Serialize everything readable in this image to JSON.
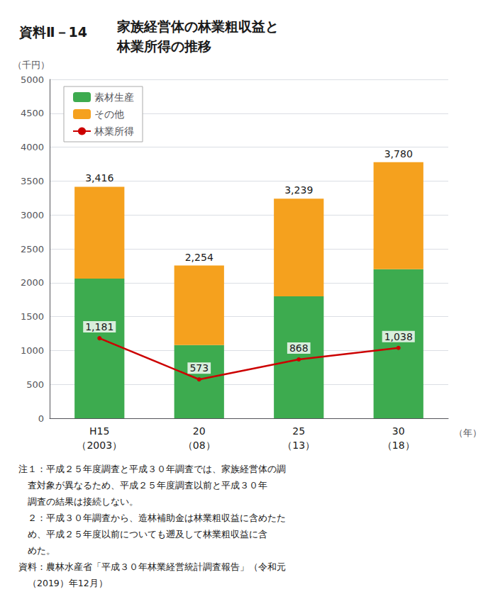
{
  "chart_data": {
    "type": "bar",
    "title_box": "資料Ⅱ－14",
    "title": "家族経営体の林業粗収益と\n林業所得の推移",
    "ylabel": "（千円）",
    "xlabel": "（年）",
    "categories": [
      "H15\n（2003）",
      "20\n（08）",
      "25\n（13）",
      "30\n（18）"
    ],
    "stacked": true,
    "series": [
      {
        "name": "素材生産",
        "type": "bar",
        "color": "#3dab4f",
        "values": [
          2060,
          1080,
          1800,
          2200
        ]
      },
      {
        "name": "その他",
        "type": "bar",
        "color": "#f5a11e",
        "values": [
          1356,
          1174,
          1439,
          1580
        ]
      },
      {
        "name": "林業所得",
        "type": "line",
        "color": "#cc0000",
        "values": [
          1181,
          573,
          868,
          1038
        ],
        "data_labels": true,
        "value_labels": [
          "1,181",
          "573",
          "868",
          "1,038"
        ]
      }
    ],
    "totals": [
      3416,
      2254,
      3239,
      3780
    ],
    "total_labels": [
      "3,416",
      "2,254",
      "3,239",
      "3,780"
    ],
    "ylim": [
      0,
      5000
    ],
    "yticks": [
      0,
      500,
      1000,
      1500,
      2000,
      2500,
      3000,
      3500,
      4000,
      4500,
      5000
    ],
    "grid": true,
    "legend": "upper left",
    "notes": [
      "注１：平成２５年度調査と平成３０年調査では、家族経営体の調",
      "　査対象が異なるため、平成２５年度調査以前と平成３０年",
      "　調査の結果は接続しない。",
      "　２：平成３０年調査から、造林補助金は林業粗収益に含めたた",
      "　め、平成２５年度以前についても遡及して林業粗収益に含",
      "　めた。",
      "資料：農林水産省「平成３０年林業経営統計調査報告」（令和元",
      "　（2019）年12月）"
    ]
  }
}
